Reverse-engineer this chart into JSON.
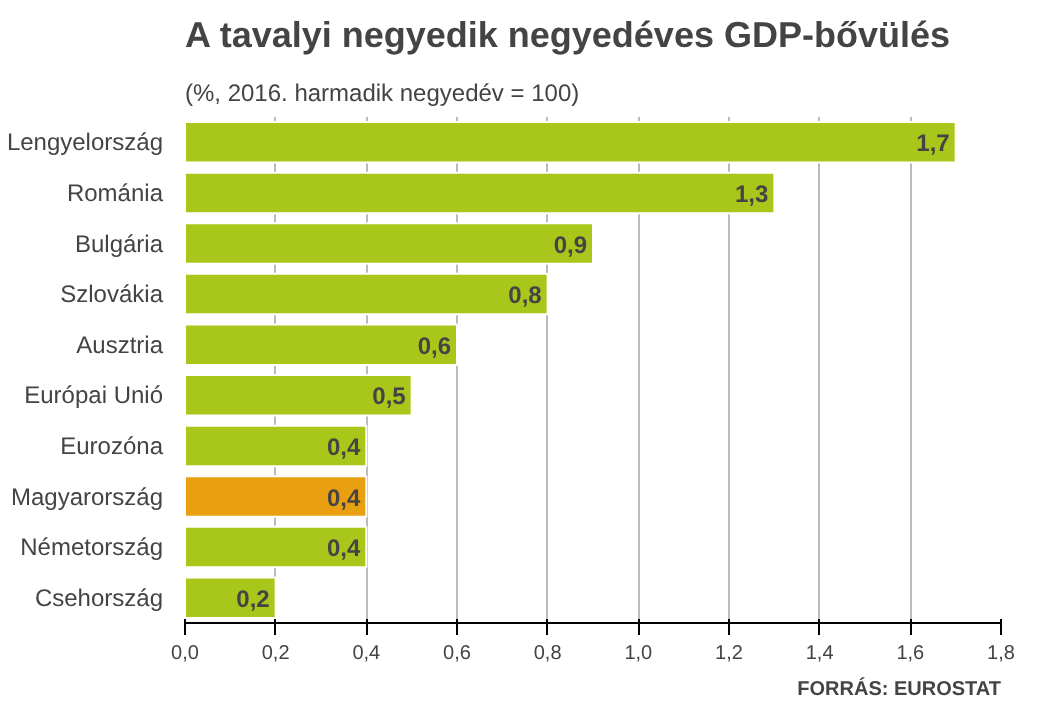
{
  "chart_data": {
    "type": "bar",
    "orientation": "horizontal",
    "title": "A tavalyi negyedik negyedéves GDP-bővülés",
    "subtitle": "(%, 2016. harmadik negyedév = 100)",
    "categories": [
      "Lengyelország",
      "Románia",
      "Bulgária",
      "Szlovákia",
      "Ausztria",
      "Európai Unió",
      "Eurozóna",
      "Magyarország",
      "Németország",
      "Csehország"
    ],
    "values": [
      1.7,
      1.3,
      0.9,
      0.8,
      0.6,
      0.5,
      0.4,
      0.4,
      0.4,
      0.2
    ],
    "colors": [
      "#a9c71b",
      "#a9c71b",
      "#a9c71b",
      "#a9c71b",
      "#a9c71b",
      "#a9c71b",
      "#a9c71b",
      "#e8a010",
      "#a9c71b",
      "#a9c71b"
    ],
    "value_labels": [
      "1,7",
      "1,3",
      "0,9",
      "0,8",
      "0,6",
      "0,5",
      "0,4",
      "0,4",
      "0,4",
      "0,2"
    ],
    "xlim": [
      0,
      1.8
    ],
    "xticks": [
      {
        "value": 0,
        "label": "0,0"
      },
      {
        "value": 0.2,
        "label": "0,2"
      },
      {
        "value": 0.4,
        "label": "0,4"
      },
      {
        "value": 0.6,
        "label": "0,6"
      },
      {
        "value": 0.8,
        "label": "0,8"
      },
      {
        "value": 1.0,
        "label": "1,0"
      },
      {
        "value": 1.2,
        "label": "1,2"
      },
      {
        "value": 1.4,
        "label": "1,4"
      },
      {
        "value": 1.6,
        "label": "1,6"
      },
      {
        "value": 1.8,
        "label": "1,8"
      }
    ],
    "grid": "x",
    "annotations": [
      "FORRÁS: EUROSTAT"
    ]
  }
}
